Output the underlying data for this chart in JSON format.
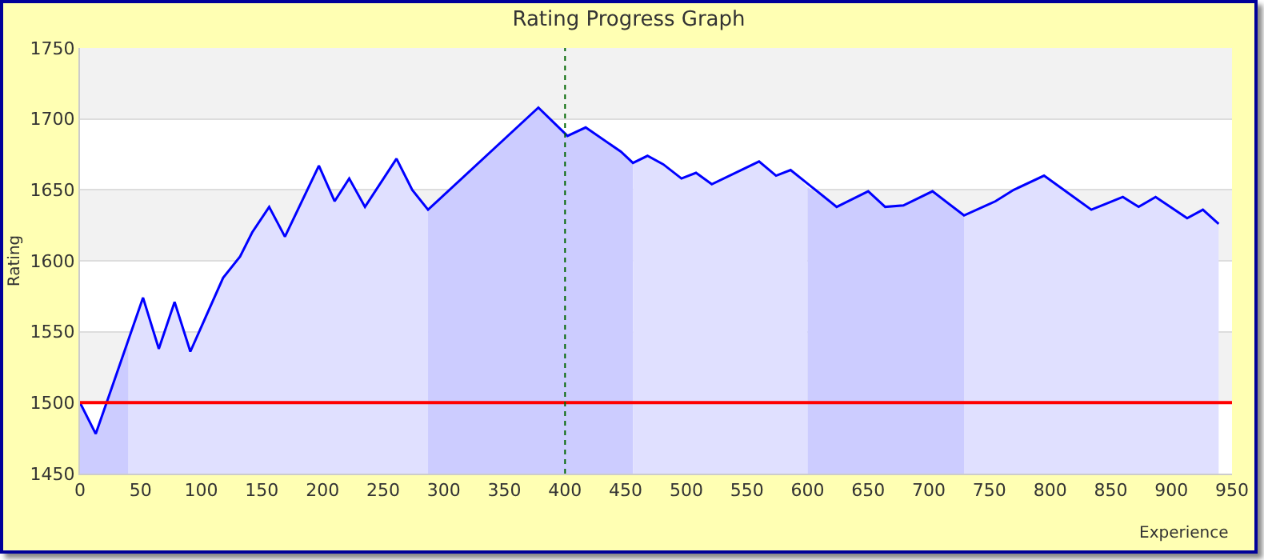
{
  "chart_data": {
    "type": "line",
    "title": "Rating Progress Graph",
    "xlabel": "Experience",
    "ylabel": "Rating",
    "xlim": [
      0,
      950
    ],
    "xticks": [
      0,
      50,
      100,
      150,
      200,
      250,
      300,
      350,
      400,
      450,
      500,
      550,
      600,
      650,
      700,
      750,
      800,
      850,
      900,
      950
    ],
    "ylim": [
      1450,
      1750
    ],
    "yticks": [
      1450,
      1500,
      1550,
      1600,
      1650,
      1700,
      1750
    ],
    "grid": "y",
    "marker": "none",
    "line_style": "solid",
    "series": [
      {
        "type": "area",
        "color": "#ccccff",
        "x": [
          0,
          13,
          40
        ],
        "values": [
          1500,
          1478,
          1545
        ]
      },
      {
        "type": "area",
        "color": "#e0e0ff",
        "x": [
          40,
          52,
          65,
          78,
          91,
          118,
          132,
          142,
          156,
          169,
          197,
          210,
          222,
          235,
          261,
          274,
          287
        ],
        "values": [
          1545,
          1574,
          1538,
          1571,
          1536,
          1588,
          1603,
          1620,
          1638,
          1617,
          1667,
          1642,
          1658,
          1638,
          1672,
          1650,
          1636
        ]
      },
      {
        "type": "area",
        "color": "#ccccff",
        "x": [
          287,
          378,
          402,
          417,
          446,
          456
        ],
        "values": [
          1636,
          1708,
          1688,
          1694,
          1677,
          1669
        ]
      },
      {
        "type": "area",
        "color": "#e0e0ff",
        "x": [
          456,
          468,
          481,
          496,
          508,
          521,
          560,
          574,
          586,
          600
        ],
        "values": [
          1669,
          1674,
          1668,
          1658,
          1662,
          1654,
          1670,
          1660,
          1664,
          1652
        ]
      },
      {
        "type": "area",
        "color": "#ccccff",
        "x": [
          600,
          624,
          650,
          664,
          679,
          703,
          729
        ],
        "values": [
          1652,
          1638,
          1649,
          1638,
          1639,
          1649,
          1632
        ]
      },
      {
        "type": "area",
        "color": "#e0e0ff",
        "x": [
          729,
          755,
          770,
          795,
          834,
          860,
          873,
          887,
          913,
          926,
          939
        ],
        "values": [
          1632,
          1642,
          1650,
          1660,
          1636,
          1645,
          1638,
          1645,
          1630,
          1636,
          1626
        ]
      },
      {
        "color": "#0000ff",
        "x": [
          0,
          13,
          52,
          65,
          78,
          91,
          118,
          132,
          142,
          156,
          169,
          197,
          210,
          222,
          235,
          261,
          274,
          287,
          378,
          402,
          417,
          446,
          456,
          468,
          481,
          496,
          508,
          521,
          560,
          574,
          586,
          624,
          650,
          664,
          679,
          703,
          729,
          755,
          770,
          795,
          834,
          860,
          873,
          887,
          913,
          926,
          939
        ],
        "values": [
          1500,
          1478,
          1574,
          1538,
          1571,
          1536,
          1588,
          1603,
          1620,
          1638,
          1617,
          1667,
          1642,
          1658,
          1638,
          1672,
          1650,
          1636,
          1708,
          1688,
          1694,
          1677,
          1669,
          1674,
          1668,
          1658,
          1662,
          1654,
          1670,
          1660,
          1664,
          1638,
          1649,
          1638,
          1639,
          1649,
          1632,
          1642,
          1650,
          1660,
          1636,
          1645,
          1638,
          1645,
          1630,
          1636,
          1626
        ]
      }
    ],
    "ref_lines": [
      {
        "axis": "y",
        "value": 1500,
        "color": "#ff0000",
        "line_style": "solid"
      },
      {
        "axis": "x",
        "value": 400,
        "color": "#006600",
        "line_style": "dotted"
      }
    ]
  }
}
